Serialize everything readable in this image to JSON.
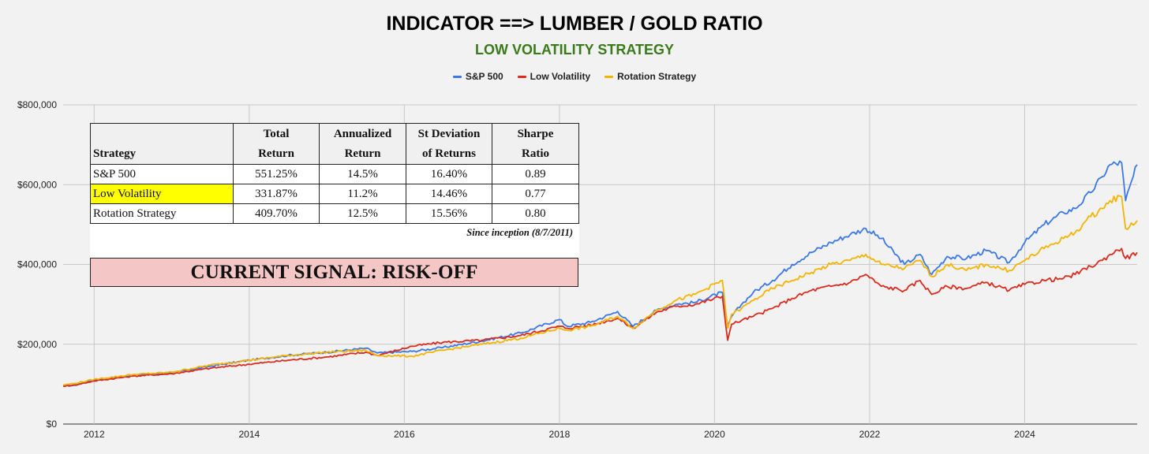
{
  "chart_data": {
    "type": "line",
    "title": "INDICATOR ==> LUMBER / GOLD RATIO",
    "subtitle": "LOW VOLATILITY STRATEGY",
    "xlabel": "",
    "ylabel": "",
    "xlim": [
      2011.6,
      2025.45
    ],
    "ylim": [
      0,
      800000
    ],
    "x_ticks": [
      2012,
      2014,
      2016,
      2018,
      2020,
      2022,
      2024
    ],
    "x_tick_labels": [
      "2012",
      "2014",
      "2016",
      "2018",
      "2020",
      "2022",
      "2024"
    ],
    "y_ticks": [
      0,
      200000,
      400000,
      600000,
      800000
    ],
    "y_tick_labels": [
      "$0",
      "$200,000",
      "$400,000",
      "$600,000",
      "$800,000"
    ],
    "grid": true,
    "legend_position": "top",
    "series": [
      {
        "name": "S&P 500",
        "color": "#3b78e7",
        "x": [
          2011.6,
          2011.75,
          2012.0,
          2012.5,
          2013.0,
          2013.5,
          2014.0,
          2014.5,
          2015.0,
          2015.5,
          2015.65,
          2016.1,
          2016.5,
          2017.0,
          2017.5,
          2018.0,
          2018.1,
          2018.4,
          2018.75,
          2018.95,
          2019.25,
          2019.5,
          2019.75,
          2020.1,
          2020.17,
          2020.22,
          2020.35,
          2020.5,
          2020.75,
          2021.0,
          2021.25,
          2021.5,
          2021.75,
          2021.95,
          2022.15,
          2022.45,
          2022.65,
          2022.8,
          2023.0,
          2023.25,
          2023.5,
          2023.8,
          2024.0,
          2024.25,
          2024.5,
          2024.65,
          2024.85,
          2025.0,
          2025.1,
          2025.25,
          2025.3,
          2025.45
        ],
        "y": [
          95000,
          97000,
          110000,
          122000,
          128000,
          145000,
          160000,
          172000,
          180000,
          190000,
          178000,
          182000,
          192000,
          208000,
          228000,
          262000,
          245000,
          255000,
          282000,
          245000,
          285000,
          300000,
          305000,
          330000,
          245000,
          270000,
          300000,
          330000,
          360000,
          400000,
          430000,
          455000,
          475000,
          490000,
          465000,
          400000,
          425000,
          375000,
          420000,
          415000,
          435000,
          405000,
          455000,
          500000,
          530000,
          540000,
          580000,
          620000,
          650000,
          655000,
          560000,
          650000
        ]
      },
      {
        "name": "Low Volatility",
        "color": "#db2b1d",
        "x": [
          2011.6,
          2011.75,
          2012.0,
          2012.5,
          2013.0,
          2013.5,
          2014.0,
          2014.5,
          2015.0,
          2015.5,
          2015.65,
          2016.1,
          2016.5,
          2017.0,
          2017.5,
          2018.0,
          2018.1,
          2018.4,
          2018.75,
          2018.95,
          2019.25,
          2019.5,
          2019.75,
          2020.1,
          2020.17,
          2020.22,
          2020.35,
          2020.5,
          2020.75,
          2021.0,
          2021.25,
          2021.5,
          2021.75,
          2021.95,
          2022.15,
          2022.45,
          2022.65,
          2022.8,
          2023.0,
          2023.25,
          2023.5,
          2023.8,
          2024.0,
          2024.25,
          2024.5,
          2024.65,
          2024.85,
          2025.0,
          2025.1,
          2025.25,
          2025.3,
          2025.45
        ],
        "y": [
          95000,
          98000,
          108000,
          120000,
          126000,
          140000,
          150000,
          160000,
          168000,
          180000,
          172000,
          195000,
          205000,
          210000,
          222000,
          245000,
          240000,
          248000,
          265000,
          240000,
          280000,
          295000,
          300000,
          320000,
          210000,
          250000,
          260000,
          270000,
          290000,
          315000,
          335000,
          345000,
          355000,
          375000,
          345000,
          335000,
          360000,
          325000,
          345000,
          340000,
          355000,
          335000,
          350000,
          360000,
          365000,
          375000,
          395000,
          410000,
          425000,
          440000,
          415000,
          430000
        ]
      },
      {
        "name": "Rotation Strategy",
        "color": "#f5b400",
        "x": [
          2011.6,
          2011.75,
          2012.0,
          2012.5,
          2013.0,
          2013.5,
          2014.0,
          2014.5,
          2015.0,
          2015.5,
          2015.65,
          2016.1,
          2016.5,
          2017.0,
          2017.5,
          2018.0,
          2018.1,
          2018.4,
          2018.75,
          2018.95,
          2019.25,
          2019.5,
          2019.75,
          2020.1,
          2020.17,
          2020.22,
          2020.35,
          2020.5,
          2020.75,
          2021.0,
          2021.25,
          2021.5,
          2021.75,
          2021.95,
          2022.15,
          2022.45,
          2022.65,
          2022.8,
          2023.0,
          2023.25,
          2023.5,
          2023.8,
          2024.0,
          2024.25,
          2024.5,
          2024.65,
          2024.85,
          2025.0,
          2025.1,
          2025.25,
          2025.3,
          2025.45
        ],
        "y": [
          98000,
          102000,
          112000,
          124000,
          130000,
          148000,
          160000,
          172000,
          180000,
          185000,
          172000,
          170000,
          185000,
          200000,
          215000,
          240000,
          235000,
          245000,
          270000,
          240000,
          285000,
          310000,
          325000,
          360000,
          240000,
          275000,
          290000,
          310000,
          340000,
          360000,
          380000,
          400000,
          410000,
          425000,
          400000,
          390000,
          410000,
          370000,
          400000,
          385000,
          400000,
          385000,
          410000,
          440000,
          465000,
          480000,
          520000,
          540000,
          560000,
          570000,
          490000,
          510000
        ]
      }
    ]
  },
  "legend": [
    {
      "label": "S&P 500",
      "color": "#3b78e7"
    },
    {
      "label": "Low Volatility",
      "color": "#db2b1d"
    },
    {
      "label": "Rotation Strategy",
      "color": "#f5b400"
    }
  ],
  "stats_table": {
    "header_line1": [
      "",
      "Total",
      "Annualized",
      "St Deviation",
      "Sharpe"
    ],
    "header_line2": [
      "Strategy",
      "Return",
      "Return",
      "of Returns",
      "Ratio"
    ],
    "rows": [
      [
        "S&P 500",
        "551.25%",
        "14.5%",
        "16.40%",
        "0.89"
      ],
      [
        "Low Volatility",
        "331.87%",
        "11.2%",
        "14.46%",
        "0.77"
      ],
      [
        "Rotation Strategy",
        "409.70%",
        "12.5%",
        "15.56%",
        "0.80"
      ]
    ],
    "highlight_color": "#ffff00",
    "note": "Since inception (8/7/2011)"
  },
  "signal": {
    "text": "CURRENT SIGNAL: RISK-OFF",
    "background": "#f4c7c6"
  }
}
